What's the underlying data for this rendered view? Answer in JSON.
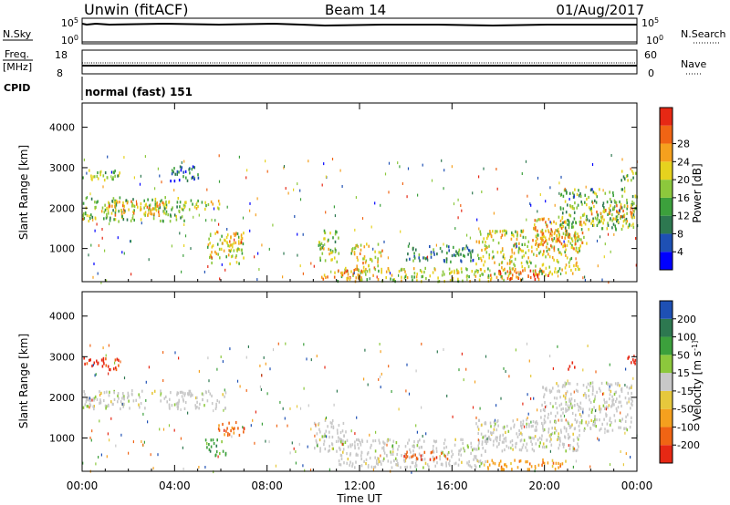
{
  "header": {
    "station": "Unwin (fitACF)",
    "beam": "Beam 14",
    "date": "01/Aug/2017"
  },
  "panels": {
    "nsky": {
      "label": "N.Sky",
      "tick_top": "10^5",
      "tick_bottom": "10^0"
    },
    "nsearch": {
      "label": "N.Search",
      "tick_top": "10^5",
      "tick_bottom": "10^0"
    },
    "freq": {
      "label_line1": "Freq.",
      "label_line2": "[MHz]",
      "tick_top": "18",
      "tick_bottom": "8"
    },
    "nave": {
      "label": "Nave",
      "tick_top": "60",
      "tick_bottom": "0"
    },
    "cpid": {
      "label": "CPID",
      "value": "normal (fast) 151"
    }
  },
  "colors": {
    "power": [
      "#0000ff",
      "#1e50b4",
      "#2d7850",
      "#3ca03c",
      "#8cc83c",
      "#e6d21e",
      "#f5a01e",
      "#f06414",
      "#e62814"
    ],
    "velocity": [
      "#e62814",
      "#f06414",
      "#f5a01e",
      "#e6c83c",
      "#c8c8c8",
      "#8cc83c",
      "#3ca03c",
      "#2d7850",
      "#1e50b4"
    ]
  },
  "chart_data": [
    {
      "type": "heatmap",
      "name": "power",
      "ylabel": "Slant Range [km]",
      "yticks": [
        "1000",
        "2000",
        "3000",
        "4000"
      ],
      "ylim": [
        180,
        4600
      ],
      "colorbar_label": "Power [dB]",
      "colorbar_ticks": [
        "4",
        "8",
        "12",
        "16",
        "20",
        "24",
        "28"
      ],
      "clim": [
        0,
        32
      ],
      "regions": [
        {
          "t0": 0.0,
          "t1": 1.6,
          "r0": 2700,
          "r1": 3000,
          "v": 16
        },
        {
          "t0": 0.0,
          "t1": 4.5,
          "r0": 1700,
          "r1": 2300,
          "v": 15
        },
        {
          "t0": 0.8,
          "t1": 3.5,
          "r0": 1850,
          "r1": 2200,
          "v": 22
        },
        {
          "t0": 4.6,
          "t1": 6.0,
          "r0": 2000,
          "r1": 2250,
          "v": 18
        },
        {
          "t0": 3.8,
          "t1": 5.2,
          "r0": 2700,
          "r1": 3100,
          "v": 8
        },
        {
          "t0": 5.4,
          "t1": 7.0,
          "r0": 650,
          "r1": 1450,
          "v": 19
        },
        {
          "t0": 6.2,
          "t1": 6.9,
          "r0": 1100,
          "r1": 1400,
          "v": 24
        },
        {
          "t0": 10.2,
          "t1": 11.1,
          "r0": 700,
          "r1": 1500,
          "v": 16
        },
        {
          "t0": 11.6,
          "t1": 13.0,
          "r0": 500,
          "r1": 1150,
          "v": 20
        },
        {
          "t0": 11.0,
          "t1": 18.5,
          "r0": 220,
          "r1": 550,
          "v": 18
        },
        {
          "t0": 10.3,
          "t1": 12.3,
          "r0": 250,
          "r1": 500,
          "v": 24
        },
        {
          "t0": 14.0,
          "t1": 17.2,
          "r0": 700,
          "r1": 1100,
          "v": 10
        },
        {
          "t0": 17.0,
          "t1": 21.5,
          "r0": 400,
          "r1": 1500,
          "v": 19
        },
        {
          "t0": 17.6,
          "t1": 20.2,
          "r0": 250,
          "r1": 500,
          "v": 27
        },
        {
          "t0": 19.5,
          "t1": 21.8,
          "r0": 1000,
          "r1": 1800,
          "v": 22
        },
        {
          "t0": 20.5,
          "t1": 24.0,
          "r0": 1500,
          "r1": 2500,
          "v": 14
        },
        {
          "t0": 22.0,
          "t1": 23.8,
          "r0": 1700,
          "r1": 2100,
          "v": 22
        },
        {
          "t0": 23.2,
          "t1": 24.0,
          "r0": 2700,
          "r1": 3000,
          "v": 14
        }
      ]
    },
    {
      "type": "heatmap",
      "name": "velocity",
      "ylabel": "Slant Range [km]",
      "yticks": [
        "1000",
        "2000",
        "3000",
        "4000"
      ],
      "ylim": [
        180,
        4600
      ],
      "colorbar_label": "Velocity [m s^-1]",
      "colorbar_ticks": [
        "-200",
        "-100",
        "-50",
        "-15",
        "15",
        "50",
        "100",
        "200"
      ],
      "regions": [
        {
          "t0": 0.0,
          "t1": 1.6,
          "r0": 2700,
          "r1": 3000,
          "c": 0
        },
        {
          "t0": 0.0,
          "t1": 6.2,
          "r0": 1750,
          "r1": 2200,
          "c": 4
        },
        {
          "t0": 5.8,
          "t1": 7.0,
          "r0": 1100,
          "r1": 1450,
          "c": 1
        },
        {
          "t0": 5.3,
          "t1": 6.2,
          "r0": 600,
          "r1": 1000,
          "c": 6
        },
        {
          "t0": 10.0,
          "t1": 11.4,
          "r0": 700,
          "r1": 1500,
          "c": 4
        },
        {
          "t0": 11.0,
          "t1": 17.5,
          "r0": 300,
          "r1": 1000,
          "c": 4
        },
        {
          "t0": 13.8,
          "t1": 15.8,
          "r0": 500,
          "r1": 700,
          "c": 1
        },
        {
          "t0": 17.5,
          "t1": 21.0,
          "r0": 250,
          "r1": 500,
          "c": 2
        },
        {
          "t0": 17.0,
          "t1": 21.5,
          "r0": 700,
          "r1": 1500,
          "c": 4
        },
        {
          "t0": 19.8,
          "t1": 23.8,
          "r0": 1200,
          "r1": 2400,
          "c": 4
        },
        {
          "t0": 21.0,
          "t1": 21.4,
          "r0": 2700,
          "r1": 2900,
          "c": 0
        },
        {
          "t0": 23.3,
          "t1": 23.9,
          "r0": 2850,
          "r1": 3050,
          "c": 0
        }
      ]
    }
  ],
  "xaxis": {
    "label": "Time UT",
    "ticks": [
      "00:00",
      "04:00",
      "08:00",
      "12:00",
      "16:00",
      "20:00",
      "00:00"
    ],
    "range_hours": [
      0,
      24
    ]
  }
}
